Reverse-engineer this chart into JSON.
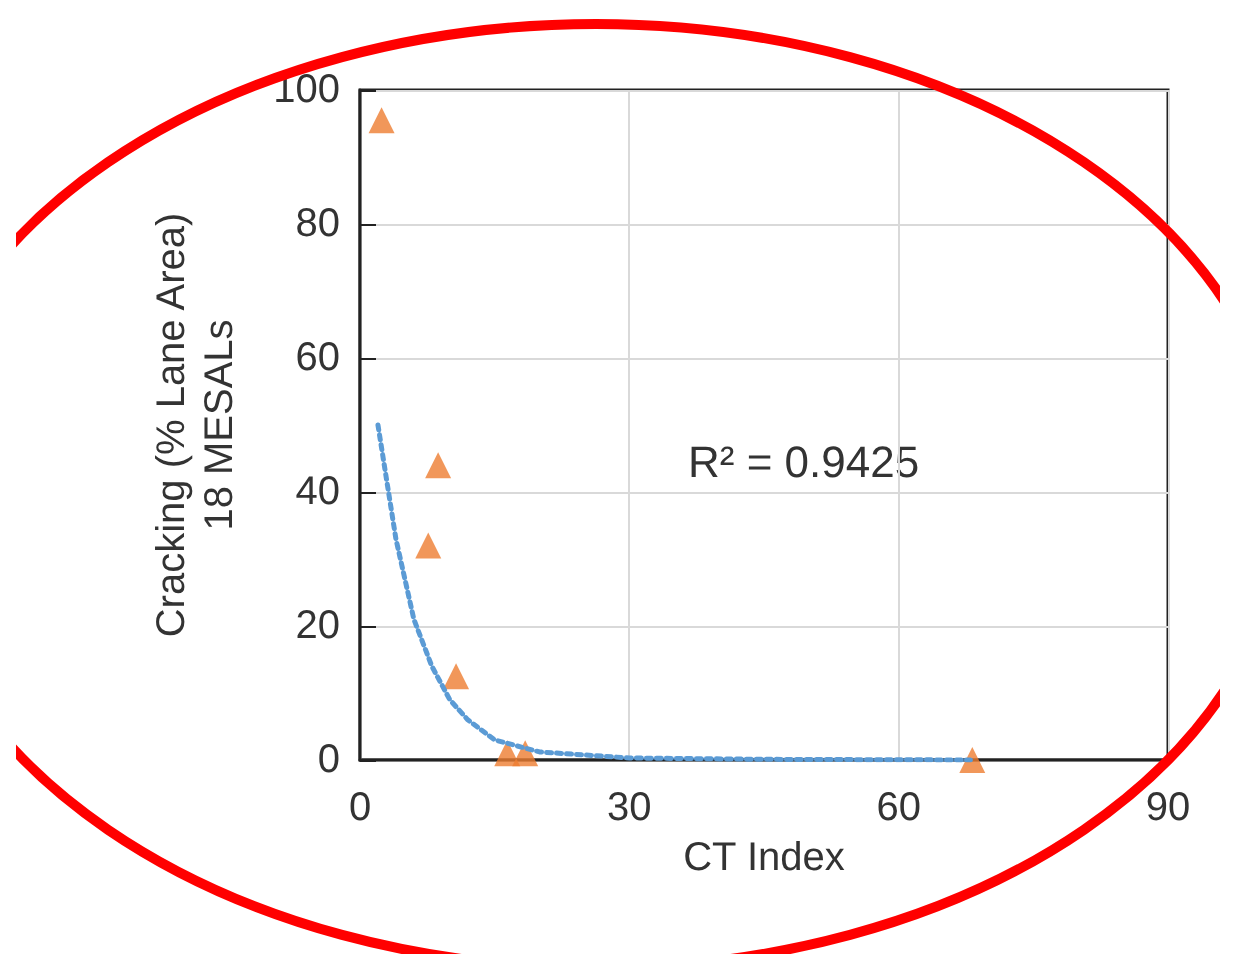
{
  "chart_data": {
    "type": "scatter",
    "xlabel": "CT Index",
    "ylabel": "Cracking (% Lane Area)\n18 MESALs",
    "xlim": [
      0,
      90
    ],
    "xticks": [
      0,
      30,
      60,
      90
    ],
    "ylim": [
      0,
      100
    ],
    "yticks": [
      0,
      20,
      40,
      60,
      80,
      100
    ],
    "grid": true,
    "marker": "triangle",
    "annotations": [
      "R² = 0.9425"
    ],
    "series": [
      {
        "type": "scatter",
        "color": "#ed7d31",
        "x": [
          2.4,
          8.7,
          7.6,
          10.7,
          16.4,
          18.4,
          68.2
        ],
        "values": [
          95.5,
          44,
          32,
          12.5,
          1,
          1,
          0
        ]
      },
      {
        "type": "line",
        "color": "#5b9bd5",
        "line_style": "dotted",
        "marker": "none",
        "x": [
          2,
          4,
          6,
          8,
          10,
          12,
          15,
          20,
          30,
          45,
          68
        ],
        "values": [
          50,
          33,
          21,
          14,
          9,
          6,
          3,
          1.2,
          0.3,
          0.1,
          0
        ]
      }
    ]
  }
}
